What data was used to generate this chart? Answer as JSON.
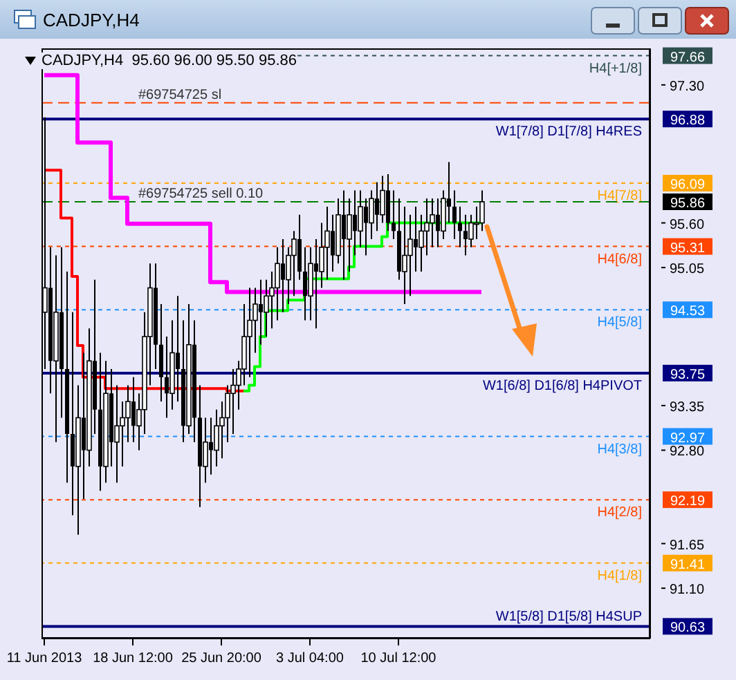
{
  "chart_data": {
    "type": "candlestick",
    "title": "CADJPY,H4",
    "subtitle": "CADJPY,H4  95.60 96.00 95.50 95.86",
    "color": "#000000",
    "categories": [
      "11 Jun 2013",
      null,
      null,
      null,
      null,
      null,
      null,
      null,
      null,
      null,
      null,
      null,
      null,
      null,
      null,
      null,
      "18 Jun 12:00",
      null,
      null,
      null,
      null,
      null,
      null,
      null,
      null,
      null,
      null,
      null,
      null,
      null,
      null,
      null,
      "25 Jun 20:00",
      null,
      null,
      null,
      null,
      null,
      null,
      null,
      null,
      null,
      null,
      null,
      null,
      null,
      null,
      null,
      "3 Jul 04:00",
      null,
      null,
      null,
      null,
      null,
      null,
      null,
      null,
      null,
      null,
      null,
      null,
      null,
      null,
      null,
      "10 Jul 12:00",
      null,
      null,
      null,
      null,
      null,
      null,
      null,
      null,
      null,
      null,
      null,
      null,
      null,
      null,
      null
    ],
    "ohlc": [
      [
        94.5,
        96.9,
        93.8,
        94.8
      ],
      [
        94.8,
        95.3,
        93.5,
        93.9
      ],
      [
        93.9,
        95.2,
        92.9,
        94.5
      ],
      [
        94.5,
        95.3,
        93.2,
        93.8
      ],
      [
        93.8,
        95.0,
        92.4,
        93.0
      ],
      [
        93.0,
        94.5,
        92.0,
        92.6
      ],
      [
        92.6,
        93.6,
        91.76,
        93.2
      ],
      [
        93.2,
        94.0,
        92.2,
        92.8
      ],
      [
        92.8,
        94.3,
        92.6,
        93.9
      ],
      [
        93.9,
        94.9,
        93.0,
        93.3
      ],
      [
        93.3,
        94.0,
        92.3,
        92.6
      ],
      [
        92.6,
        93.9,
        92.4,
        93.5
      ],
      [
        93.5,
        93.8,
        92.6,
        92.9
      ],
      [
        92.9,
        93.6,
        92.4,
        93.1
      ],
      [
        93.1,
        93.4,
        92.6,
        93.2
      ],
      [
        93.2,
        93.6,
        92.9,
        93.4
      ],
      [
        93.4,
        93.7,
        92.9,
        93.1
      ],
      [
        93.1,
        93.5,
        92.8,
        93.3
      ],
      [
        93.3,
        94.5,
        93.0,
        94.2
      ],
      [
        94.2,
        95.1,
        93.6,
        94.8
      ],
      [
        94.8,
        95.1,
        93.8,
        94.1
      ],
      [
        94.1,
        94.6,
        93.4,
        93.7
      ],
      [
        93.7,
        94.2,
        93.2,
        93.5
      ],
      [
        93.5,
        94.4,
        93.3,
        94.0
      ],
      [
        94.0,
        94.7,
        93.4,
        93.8
      ],
      [
        93.8,
        94.4,
        92.9,
        93.1
      ],
      [
        93.1,
        94.6,
        93.0,
        94.1
      ],
      [
        94.1,
        94.4,
        92.9,
        93.2
      ],
      [
        93.2,
        93.6,
        92.1,
        92.6
      ],
      [
        92.6,
        93.2,
        92.4,
        92.9
      ],
      [
        92.9,
        93.2,
        92.5,
        92.8
      ],
      [
        92.8,
        93.3,
        92.6,
        93.1
      ],
      [
        93.1,
        93.4,
        92.7,
        93.2
      ],
      [
        93.2,
        93.6,
        92.9,
        93.5
      ],
      [
        93.5,
        93.8,
        93.0,
        93.6
      ],
      [
        93.6,
        93.9,
        93.3,
        93.8
      ],
      [
        93.8,
        94.6,
        93.6,
        94.2
      ],
      [
        94.2,
        94.8,
        93.7,
        94.4
      ],
      [
        94.4,
        94.8,
        94.0,
        94.6
      ],
      [
        94.6,
        94.9,
        94.1,
        94.5
      ],
      [
        94.5,
        94.9,
        94.2,
        94.7
      ],
      [
        94.7,
        95.0,
        94.3,
        94.8
      ],
      [
        94.8,
        95.3,
        94.4,
        95.1
      ],
      [
        95.1,
        95.4,
        94.5,
        94.9
      ],
      [
        94.9,
        95.3,
        94.6,
        95.2
      ],
      [
        95.2,
        95.5,
        94.7,
        95.4
      ],
      [
        95.4,
        95.7,
        94.9,
        95.0
      ],
      [
        95.0,
        95.3,
        94.4,
        94.7
      ],
      [
        94.7,
        95.3,
        94.4,
        95.1
      ],
      [
        95.1,
        95.4,
        94.3,
        95.0
      ],
      [
        95.0,
        95.6,
        94.8,
        95.3
      ],
      [
        95.3,
        95.8,
        94.9,
        95.5
      ],
      [
        95.5,
        95.7,
        95.0,
        95.2
      ],
      [
        95.2,
        95.9,
        95.1,
        95.7
      ],
      [
        95.7,
        96.0,
        94.9,
        95.4
      ],
      [
        95.4,
        95.9,
        95.0,
        95.7
      ],
      [
        95.7,
        96.0,
        95.2,
        95.5
      ],
      [
        95.5,
        96.0,
        95.3,
        95.8
      ],
      [
        95.8,
        95.9,
        95.2,
        95.6
      ],
      [
        95.6,
        96.0,
        95.4,
        95.9
      ],
      [
        95.9,
        96.1,
        95.5,
        95.7
      ],
      [
        95.7,
        96.18,
        95.6,
        96.0
      ],
      [
        96.0,
        96.2,
        95.5,
        95.6
      ],
      [
        95.6,
        96.0,
        95.4,
        95.5
      ],
      [
        95.5,
        95.9,
        94.9,
        95.0
      ],
      [
        95.0,
        95.8,
        94.6,
        95.2
      ],
      [
        95.2,
        95.7,
        94.7,
        95.4
      ],
      [
        95.4,
        95.8,
        95.0,
        95.3
      ],
      [
        95.3,
        95.7,
        95.0,
        95.5
      ],
      [
        95.5,
        95.9,
        95.2,
        95.6
      ],
      [
        95.6,
        95.9,
        95.3,
        95.7
      ],
      [
        95.7,
        95.9,
        95.3,
        95.5
      ],
      [
        95.5,
        96.0,
        95.4,
        95.9
      ],
      [
        95.9,
        96.35,
        95.6,
        95.8
      ],
      [
        95.8,
        96.0,
        95.4,
        95.6
      ],
      [
        95.6,
        95.8,
        95.3,
        95.5
      ],
      [
        95.5,
        95.7,
        95.2,
        95.4
      ],
      [
        95.4,
        95.7,
        95.3,
        95.6
      ],
      [
        95.6,
        95.8,
        95.4,
        95.6
      ],
      [
        95.6,
        96.0,
        95.5,
        95.86
      ]
    ],
    "series": [
      {
        "type": "step",
        "color": "#ff00ff",
        "values": [
          97.42,
          97.42,
          97.42,
          97.42,
          97.42,
          97.42,
          96.59,
          96.59,
          96.59,
          96.59,
          96.59,
          96.59,
          95.91,
          95.91,
          95.91,
          95.59,
          95.59,
          95.59,
          95.59,
          95.59,
          95.59,
          95.59,
          95.59,
          95.59,
          95.59,
          95.59,
          95.59,
          95.59,
          95.59,
          95.59,
          94.87,
          94.87,
          94.87,
          94.75,
          94.75,
          94.75,
          94.75,
          94.75,
          94.75,
          94.75,
          94.75,
          94.75,
          94.75,
          94.75,
          94.75,
          94.75,
          94.75,
          94.75,
          94.75,
          94.75,
          94.75,
          94.75,
          94.75,
          94.75,
          94.75,
          94.75,
          94.75,
          94.75,
          94.75,
          94.75,
          94.75,
          94.75,
          94.75,
          94.75,
          94.75,
          94.75,
          94.75,
          94.75,
          94.75,
          94.75,
          94.75,
          94.75,
          94.75,
          94.75,
          94.75,
          94.75,
          94.75,
          94.75,
          94.75,
          94.75
        ]
      },
      {
        "type": "step",
        "color": "#ff0000",
        "values": [
          96.25,
          96.25,
          96.25,
          95.66,
          95.66,
          94.94,
          94.09,
          93.7,
          93.7,
          93.7,
          93.7,
          93.56,
          93.56,
          93.56,
          93.56,
          93.56,
          93.56,
          93.56,
          93.56,
          93.56,
          93.56,
          93.56,
          93.56,
          93.56,
          93.56,
          93.56,
          93.56,
          93.56,
          93.56,
          93.56,
          93.56,
          93.56,
          93.56,
          93.53,
          93.53,
          93.53,
          93.53,
          null,
          null,
          null,
          null,
          null,
          null,
          null,
          null,
          null,
          null,
          null,
          null,
          null,
          null,
          null,
          null,
          null,
          null,
          null,
          null,
          null,
          null,
          null,
          null,
          null,
          null,
          null,
          null,
          null,
          null,
          null,
          null,
          null,
          null,
          null,
          null,
          null,
          null,
          null,
          null,
          null,
          null,
          null
        ]
      },
      {
        "type": "step",
        "color": "#00ff00",
        "values": [
          null,
          null,
          null,
          null,
          null,
          null,
          null,
          null,
          null,
          null,
          null,
          null,
          null,
          null,
          null,
          null,
          null,
          null,
          null,
          null,
          null,
          null,
          null,
          null,
          null,
          null,
          null,
          null,
          null,
          null,
          null,
          null,
          null,
          null,
          null,
          null,
          93.53,
          93.6,
          93.83,
          94.2,
          94.52,
          94.52,
          94.52,
          94.52,
          94.65,
          94.65,
          94.65,
          94.91,
          94.91,
          94.91,
          94.91,
          94.91,
          94.91,
          94.91,
          94.91,
          95.06,
          95.31,
          95.31,
          95.31,
          95.31,
          95.31,
          95.43,
          95.6,
          95.6,
          95.6,
          95.6,
          95.6,
          95.6,
          95.6,
          95.6,
          95.6,
          95.6,
          95.6,
          95.6,
          95.6,
          95.6,
          95.6,
          95.6,
          95.6,
          95.6
        ]
      }
    ],
    "ylim": [
      90.48,
      97.75
    ],
    "yticks": [
      97.66,
      {
        "value": 97.3,
        "label": "97.30"
      },
      96.88,
      96.09,
      95.86,
      {
        "value": 95.6,
        "label": "95.60"
      },
      95.31,
      95.05,
      94.53,
      93.75,
      93.35,
      92.97,
      {
        "value": 92.8,
        "label": "92.80"
      },
      92.19,
      91.65,
      91.41,
      {
        "value": 91.1,
        "label": "91.10"
      },
      90.63
    ],
    "ref_lines": [
      {
        "axis": "y",
        "value": 97.66,
        "label": "H4[+1/8]",
        "color": "#2f4f4f",
        "line_style": "dotted"
      },
      {
        "axis": "y",
        "value": 97.08,
        "label": "#69754725 sl",
        "color": "#ff4500",
        "line_style": "dashed"
      },
      {
        "axis": "y",
        "value": 96.88,
        "label": "W1[7/8] D1[7/8] H4RES",
        "color": "#000080",
        "line_style": "solid"
      },
      {
        "axis": "y",
        "value": 96.09,
        "label": "H4[7/8]",
        "color": "#ffa500",
        "line_style": "dotted"
      },
      {
        "axis": "y",
        "value": 95.86,
        "label": "#69754725 sell 0.10",
        "color": "#008000",
        "line_style": "dashed"
      },
      {
        "axis": "y",
        "value": 95.31,
        "label": "H4[6/8]",
        "color": "#ff4500",
        "line_style": "dotted"
      },
      {
        "axis": "y",
        "value": 94.53,
        "label": "H4[5/8]",
        "color": "#1e90ff",
        "line_style": "dotted"
      },
      {
        "axis": "y",
        "value": 93.75,
        "label": "W1[6/8] D1[6/8] H4PIVOT",
        "color": "#000080",
        "line_style": "solid"
      },
      {
        "axis": "y",
        "value": 92.97,
        "label": "H4[3/8]",
        "color": "#1e90ff",
        "line_style": "dotted"
      },
      {
        "axis": "y",
        "value": 92.19,
        "label": "H4[2/8]",
        "color": "#ff4500",
        "line_style": "dotted"
      },
      {
        "axis": "y",
        "value": 91.41,
        "label": "H4[1/8]",
        "color": "#ffa500",
        "line_style": "dotted"
      },
      {
        "axis": "y",
        "value": 90.63,
        "label": "W1[5/8] D1[5/8] H4SUP",
        "color": "#000080",
        "line_style": "solid"
      }
    ],
    "grid": false,
    "legend": false
  }
}
